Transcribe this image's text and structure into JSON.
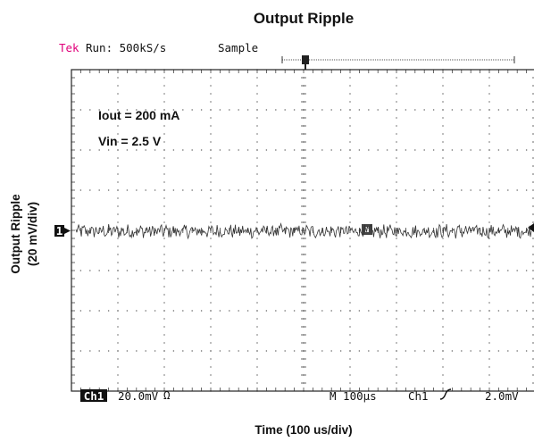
{
  "chart_data": {
    "type": "line",
    "title": "Output Ripple",
    "xlabel": "Time (100 us/div)",
    "ylabel_line1": "Output Ripple",
    "ylabel_line2": "(20 mV/div)",
    "x_divisions": 10,
    "y_divisions": 8,
    "xlim": [
      0,
      1000
    ],
    "x_unit": "us",
    "ylim": [
      -80,
      80
    ],
    "y_unit": "mV",
    "grid": true,
    "annotations": [
      "Iout = 200 mA",
      "Vin = 2.5 V"
    ],
    "series": [
      {
        "baseline_mV": 0,
        "noise_amplitude_mV": 3,
        "sample_count": 500
      }
    ]
  },
  "scope": {
    "brand": "Tek",
    "run_status": "Run: 500kS/s",
    "acq_mode": "Sample",
    "channel_marker": "1",
    "channel_badge": "Ch1",
    "ch1_scale": "20.0mV",
    "ch1_coupling_symbol": "Ω",
    "timebase": "M 100µs",
    "trigger_source": "Ch1",
    "trigger_level": "2.0mV"
  }
}
